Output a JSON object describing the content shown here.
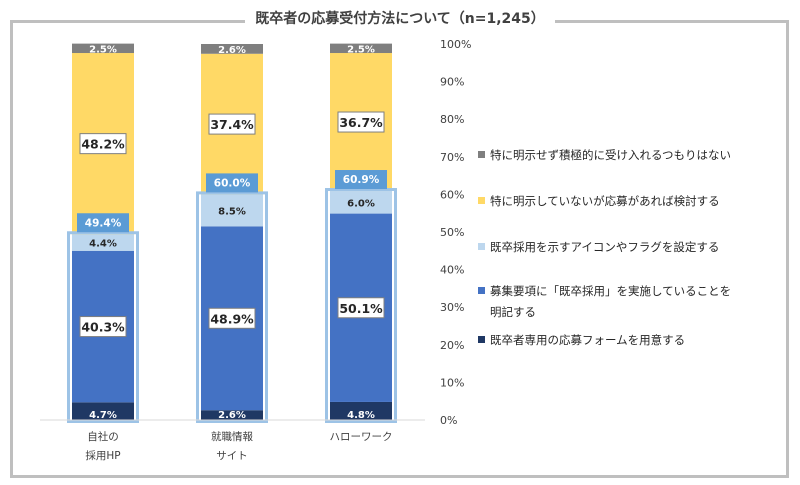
{
  "chart_data": {
    "type": "bar",
    "title": "既卒者の応募受付方法について（n=1,245）",
    "categories": [
      "自社の\n採用HP",
      "就職情報\nサイト",
      "ハローワーク"
    ],
    "ylim": [
      0,
      100
    ],
    "yticks": [
      "0%",
      "10%",
      "20%",
      "30%",
      "40%",
      "50%",
      "60%",
      "70%",
      "80%",
      "90%",
      "100%"
    ],
    "series": [
      {
        "name": "既卒者専用の応募フォームを用意する",
        "values": [
          4.7,
          2.6,
          4.8
        ],
        "labels": [
          "4.7%",
          "2.6%",
          "4.8%"
        ],
        "color": "#1f3864"
      },
      {
        "name": "募集要項に「既卒採用」を実施していることを明記する",
        "values": [
          40.3,
          48.9,
          50.1
        ],
        "labels": [
          "40.3%",
          "48.9%",
          "50.1%"
        ],
        "color": "#4472c4"
      },
      {
        "name": "既卒採用を示すアイコンやフラグを設定する",
        "values": [
          4.4,
          8.5,
          6.0
        ],
        "labels": [
          "4.4%",
          "8.5%",
          "6.0%"
        ],
        "color": "#bdd7ee"
      },
      {
        "name": "特に明示していないが応募があれば検討する",
        "values": [
          48.2,
          37.4,
          36.7
        ],
        "labels": [
          "48.2%",
          "37.4%",
          "36.7%"
        ],
        "color": "#ffd966"
      },
      {
        "name": "特に明示せず積極的に受け入れるつもりはない",
        "values": [
          2.5,
          2.6,
          2.5
        ],
        "labels": [
          "2.5%",
          "2.6%",
          "2.5%"
        ],
        "color": "#7f7f7f"
      }
    ],
    "totals": {
      "values": [
        49.4,
        60.0,
        60.9
      ],
      "labels": [
        "49.4%",
        "60.0%",
        "60.9%"
      ],
      "color": "#5b9bd5"
    },
    "legend_order": [
      4,
      3,
      2,
      1,
      0
    ],
    "legend_position": "right",
    "grid": false
  },
  "legend_lines": [
    [
      "特に明示せず積極的に受け入れるつもりはない"
    ],
    [
      "特に明示していないが応募があれば検討する"
    ],
    [
      "既卒採用を示すアイコンやフラグを設定する"
    ],
    [
      "募集要項に「既卒採用」を実施していることを",
      "明記する"
    ],
    [
      "既卒者専用の応募フォームを用意する"
    ]
  ],
  "category_lines": [
    [
      "自社の",
      "採用HP"
    ],
    [
      "就職情報",
      "サイト"
    ],
    [
      "ハローワーク"
    ]
  ]
}
